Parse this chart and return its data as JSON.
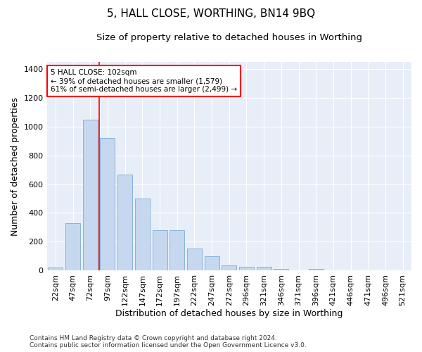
{
  "title": "5, HALL CLOSE, WORTHING, BN14 9BQ",
  "subtitle": "Size of property relative to detached houses in Worthing",
  "xlabel": "Distribution of detached houses by size in Worthing",
  "ylabel": "Number of detached properties",
  "categories": [
    "22sqm",
    "47sqm",
    "72sqm",
    "97sqm",
    "122sqm",
    "147sqm",
    "172sqm",
    "197sqm",
    "222sqm",
    "247sqm",
    "272sqm",
    "296sqm",
    "321sqm",
    "346sqm",
    "371sqm",
    "396sqm",
    "421sqm",
    "446sqm",
    "471sqm",
    "496sqm",
    "521sqm"
  ],
  "values": [
    20,
    330,
    1050,
    920,
    665,
    500,
    278,
    278,
    152,
    100,
    35,
    22,
    22,
    12,
    0,
    12,
    0,
    0,
    0,
    0,
    0
  ],
  "bar_color": "#c5d8f0",
  "bar_edge_color": "#7badd4",
  "vline_x_idx": 2.5,
  "vline_color": "red",
  "annotation_text": "5 HALL CLOSE: 102sqm\n← 39% of detached houses are smaller (1,579)\n61% of semi-detached houses are larger (2,499) →",
  "annotation_box_color": "white",
  "annotation_box_edge_color": "red",
  "ylim": [
    0,
    1450
  ],
  "yticks": [
    0,
    200,
    400,
    600,
    800,
    1000,
    1200,
    1400
  ],
  "background_color": "#e8eef8",
  "footer_text": "Contains HM Land Registry data © Crown copyright and database right 2024.\nContains public sector information licensed under the Open Government Licence v3.0.",
  "title_fontsize": 11,
  "subtitle_fontsize": 9.5,
  "xlabel_fontsize": 9,
  "ylabel_fontsize": 9,
  "tick_fontsize": 8,
  "footer_fontsize": 6.5
}
